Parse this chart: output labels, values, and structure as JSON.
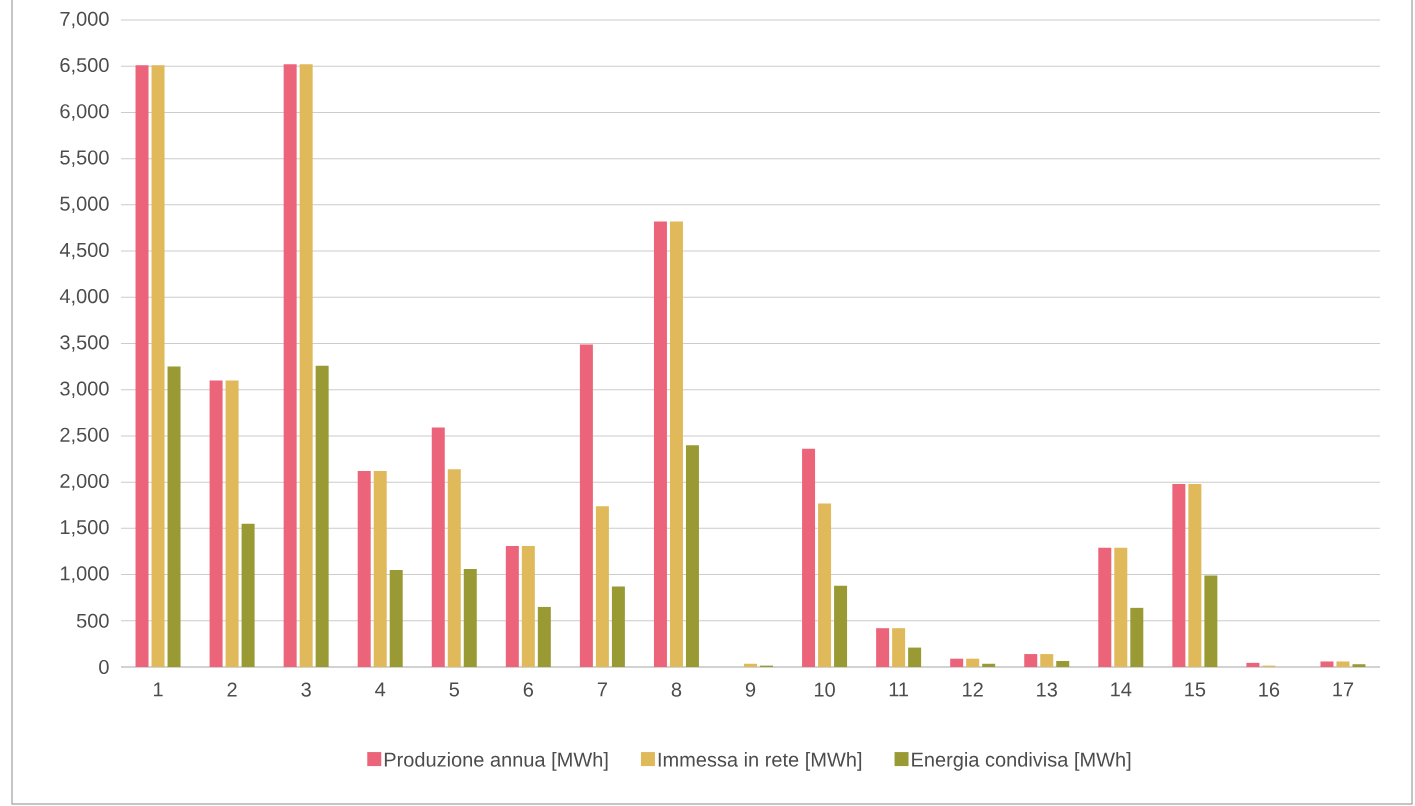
{
  "chart_data": {
    "type": "bar",
    "categories": [
      "1",
      "2",
      "3",
      "4",
      "5",
      "6",
      "7",
      "8",
      "9",
      "10",
      "11",
      "12",
      "13",
      "14",
      "15",
      "16",
      "17"
    ],
    "series": [
      {
        "name": "Produzione annua [MWh]",
        "color": "#ec6479",
        "values": [
          6510,
          3100,
          6520,
          2120,
          2590,
          1310,
          3490,
          4820,
          0,
          2360,
          420,
          90,
          140,
          1290,
          1980,
          45,
          60
        ]
      },
      {
        "name": "Immessa in rete [MWh]",
        "color": "#dfb95a",
        "values": [
          6510,
          3100,
          6520,
          2120,
          2140,
          1310,
          1740,
          4820,
          35,
          1770,
          420,
          90,
          140,
          1290,
          1980,
          15,
          60
        ]
      },
      {
        "name": "Energia condivisa [MWh]",
        "color": "#9a9a35",
        "values": [
          3250,
          1550,
          3260,
          1050,
          1060,
          650,
          870,
          2400,
          15,
          880,
          210,
          35,
          65,
          640,
          990,
          0,
          30
        ]
      }
    ],
    "ylim": [
      0,
      7000
    ],
    "yticks": [
      0,
      500,
      {
        "value": 1000,
        "label": "1,000"
      },
      {
        "value": 1500,
        "label": "1,500"
      },
      {
        "value": 2000,
        "label": "2,000"
      },
      {
        "value": 2500,
        "label": "2,500"
      },
      {
        "value": 3000,
        "label": "3,000"
      },
      {
        "value": 3500,
        "label": "3,500"
      },
      {
        "value": 4000,
        "label": "4,000"
      },
      {
        "value": 4500,
        "label": "4,500"
      },
      {
        "value": 5000,
        "label": "5,000"
      },
      {
        "value": 5500,
        "label": "5,500"
      },
      {
        "value": 6000,
        "label": "6,000"
      },
      {
        "value": 6500,
        "label": "6,500"
      },
      {
        "value": 7000,
        "label": "7,000"
      }
    ],
    "grid": "y",
    "legend": "bottom"
  }
}
